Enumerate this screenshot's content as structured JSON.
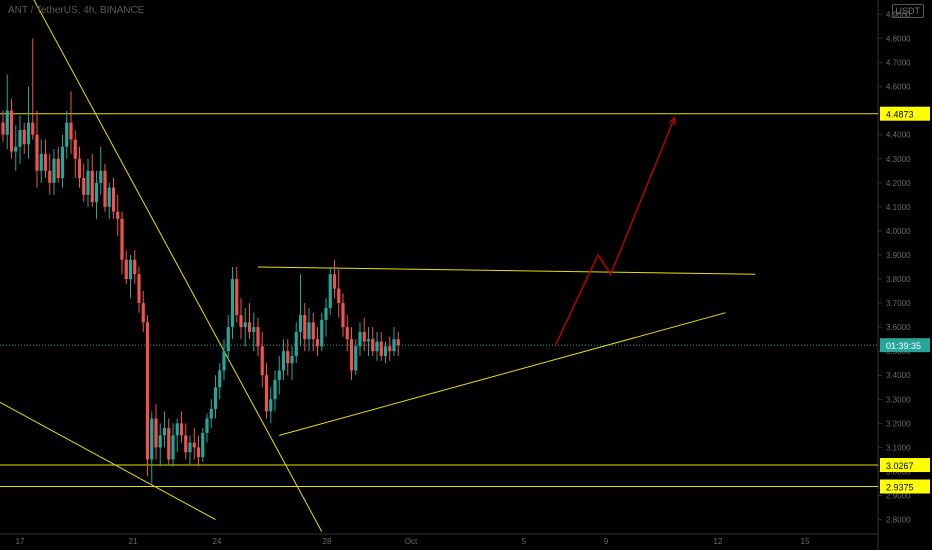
{
  "header": {
    "title": "ANT / TetherUS, 4h, BINANCE",
    "currency_badge": "USDT"
  },
  "colors": {
    "background": "#000000",
    "up": "#26a69a",
    "down": "#ef5350",
    "drawing": "#e8e000",
    "projection": "#cc0000",
    "axis_text": "#6b6b6b",
    "label_bg": "#ffff00"
  },
  "price_labels": {
    "upper": "4.4873",
    "support_1": "3.0267",
    "support_2": "2.9375",
    "timer": "01:39:35"
  },
  "chart_data": {
    "type": "candlestick",
    "title": "ANT / TetherUS, 4h, BINANCE",
    "y_ticks": [
      "2.8000",
      "2.9000",
      "3.0000",
      "3.1000",
      "3.2000",
      "3.3000",
      "3.4000",
      "3.5000",
      "3.6000",
      "3.7000",
      "3.8000",
      "3.9000",
      "4.0000",
      "4.1000",
      "4.2000",
      "4.3000",
      "4.4000",
      "4.5000",
      "4.6000",
      "4.7000",
      "4.8000",
      "4.9000"
    ],
    "x_ticks": [
      "17",
      "21",
      "24",
      "28",
      "Oct",
      "5",
      "9",
      "12",
      "15"
    ],
    "ylim": [
      2.74,
      4.96
    ],
    "horizontal_levels": [
      4.4873,
      3.0267,
      2.9375
    ],
    "current_price": 3.525,
    "candles": [
      [
        4.45,
        4.5,
        4.37,
        4.4
      ],
      [
        4.4,
        4.65,
        4.34,
        4.5
      ],
      [
        4.5,
        4.55,
        4.3,
        4.33
      ],
      [
        4.33,
        4.44,
        4.25,
        4.35
      ],
      [
        4.35,
        4.48,
        4.28,
        4.42
      ],
      [
        4.42,
        4.45,
        4.32,
        4.36
      ],
      [
        4.36,
        4.6,
        4.3,
        4.45
      ],
      [
        4.45,
        4.8,
        4.38,
        4.4
      ],
      [
        4.4,
        4.5,
        4.18,
        4.25
      ],
      [
        4.25,
        4.38,
        4.2,
        4.32
      ],
      [
        4.32,
        4.38,
        4.22,
        4.25
      ],
      [
        4.25,
        4.32,
        4.15,
        4.2
      ],
      [
        4.2,
        4.34,
        4.15,
        4.3
      ],
      [
        4.3,
        4.35,
        4.2,
        4.22
      ],
      [
        4.22,
        4.4,
        4.18,
        4.35
      ],
      [
        4.35,
        4.5,
        4.3,
        4.45
      ],
      [
        4.45,
        4.58,
        4.32,
        4.38
      ],
      [
        4.38,
        4.42,
        4.22,
        4.3
      ],
      [
        4.3,
        4.35,
        4.18,
        4.22
      ],
      [
        4.22,
        4.28,
        4.12,
        4.15
      ],
      [
        4.15,
        4.3,
        4.1,
        4.25
      ],
      [
        4.25,
        4.32,
        4.1,
        4.12
      ],
      [
        4.12,
        4.25,
        4.05,
        4.2
      ],
      [
        4.2,
        4.35,
        4.15,
        4.25
      ],
      [
        4.25,
        4.28,
        4.08,
        4.1
      ],
      [
        4.1,
        4.2,
        4.05,
        4.18
      ],
      [
        4.18,
        4.22,
        4.05,
        4.08
      ],
      [
        4.08,
        4.15,
        3.98,
        4.05
      ],
      [
        4.05,
        4.08,
        3.82,
        3.88
      ],
      [
        3.88,
        3.92,
        3.78,
        3.8
      ],
      [
        3.8,
        3.9,
        3.72,
        3.88
      ],
      [
        3.88,
        3.92,
        3.78,
        3.82
      ],
      [
        3.82,
        3.85,
        3.66,
        3.7
      ],
      [
        3.7,
        3.75,
        3.58,
        3.62
      ],
      [
        3.62,
        3.65,
        2.98,
        3.05
      ],
      [
        3.05,
        3.25,
        2.95,
        3.22
      ],
      [
        3.22,
        3.28,
        3.05,
        3.1
      ],
      [
        3.1,
        3.2,
        3.02,
        3.15
      ],
      [
        3.15,
        3.25,
        3.1,
        3.18
      ],
      [
        3.18,
        3.22,
        3.03,
        3.05
      ],
      [
        3.05,
        3.2,
        3.02,
        3.15
      ],
      [
        3.15,
        3.22,
        3.08,
        3.2
      ],
      [
        3.2,
        3.25,
        3.12,
        3.15
      ],
      [
        3.15,
        3.2,
        3.05,
        3.08
      ],
      [
        3.08,
        3.15,
        3.03,
        3.12
      ],
      [
        3.12,
        3.18,
        3.05,
        3.1
      ],
      [
        3.1,
        3.15,
        3.02,
        3.06
      ],
      [
        3.06,
        3.18,
        3.04,
        3.16
      ],
      [
        3.16,
        3.24,
        3.12,
        3.22
      ],
      [
        3.22,
        3.3,
        3.18,
        3.26
      ],
      [
        3.26,
        3.4,
        3.22,
        3.35
      ],
      [
        3.35,
        3.45,
        3.3,
        3.42
      ],
      [
        3.42,
        3.55,
        3.38,
        3.5
      ],
      [
        3.5,
        3.65,
        3.46,
        3.6
      ],
      [
        3.6,
        3.85,
        3.55,
        3.8
      ],
      [
        3.8,
        3.85,
        3.62,
        3.65
      ],
      [
        3.65,
        3.72,
        3.55,
        3.6
      ],
      [
        3.6,
        3.68,
        3.52,
        3.62
      ],
      [
        3.62,
        3.7,
        3.55,
        3.58
      ],
      [
        3.58,
        3.66,
        3.5,
        3.6
      ],
      [
        3.6,
        3.64,
        3.48,
        3.52
      ],
      [
        3.52,
        3.58,
        3.35,
        3.4
      ],
      [
        3.4,
        3.45,
        3.22,
        3.25
      ],
      [
        3.25,
        3.35,
        3.2,
        3.3
      ],
      [
        3.3,
        3.42,
        3.25,
        3.38
      ],
      [
        3.38,
        3.48,
        3.32,
        3.42
      ],
      [
        3.42,
        3.55,
        3.38,
        3.5
      ],
      [
        3.5,
        3.55,
        3.4,
        3.45
      ],
      [
        3.45,
        3.52,
        3.38,
        3.48
      ],
      [
        3.48,
        3.62,
        3.45,
        3.58
      ],
      [
        3.58,
        3.82,
        3.52,
        3.65
      ],
      [
        3.65,
        3.7,
        3.5,
        3.55
      ],
      [
        3.55,
        3.68,
        3.5,
        3.62
      ],
      [
        3.62,
        3.66,
        3.5,
        3.55
      ],
      [
        3.55,
        3.6,
        3.48,
        3.52
      ],
      [
        3.52,
        3.66,
        3.5,
        3.63
      ],
      [
        3.63,
        3.72,
        3.56,
        3.68
      ],
      [
        3.68,
        3.85,
        3.65,
        3.82
      ],
      [
        3.82,
        3.88,
        3.72,
        3.76
      ],
      [
        3.76,
        3.84,
        3.64,
        3.7
      ],
      [
        3.7,
        3.74,
        3.56,
        3.6
      ],
      [
        3.6,
        3.65,
        3.5,
        3.55
      ],
      [
        3.55,
        3.6,
        3.38,
        3.42
      ],
      [
        3.42,
        3.55,
        3.4,
        3.52
      ],
      [
        3.52,
        3.62,
        3.48,
        3.58
      ],
      [
        3.58,
        3.64,
        3.5,
        3.54
      ],
      [
        3.54,
        3.6,
        3.48,
        3.55
      ],
      [
        3.55,
        3.6,
        3.48,
        3.5
      ],
      [
        3.5,
        3.58,
        3.46,
        3.54
      ],
      [
        3.54,
        3.58,
        3.46,
        3.48
      ],
      [
        3.48,
        3.54,
        3.45,
        3.52
      ],
      [
        3.52,
        3.56,
        3.46,
        3.5
      ],
      [
        3.5,
        3.6,
        3.48,
        3.55
      ],
      [
        3.55,
        3.58,
        3.48,
        3.525
      ]
    ],
    "annotations": [
      {
        "label": "descending trendline",
        "from": [
          3,
          5.1
        ],
        "to": [
          75,
          2.75
        ]
      },
      {
        "label": "lower trendline",
        "from": [
          -2,
          3.3
        ],
        "to": [
          50,
          2.8
        ]
      },
      {
        "label": "triangle top",
        "from": [
          60,
          3.85
        ],
        "to": [
          177,
          3.82
        ]
      },
      {
        "label": "triangle bottom",
        "from": [
          65,
          3.15
        ],
        "to": [
          170,
          3.66
        ]
      }
    ],
    "projection": [
      [
        130,
        3.525
      ],
      [
        140,
        3.9
      ],
      [
        143,
        3.82
      ],
      [
        158,
        4.47
      ]
    ]
  }
}
